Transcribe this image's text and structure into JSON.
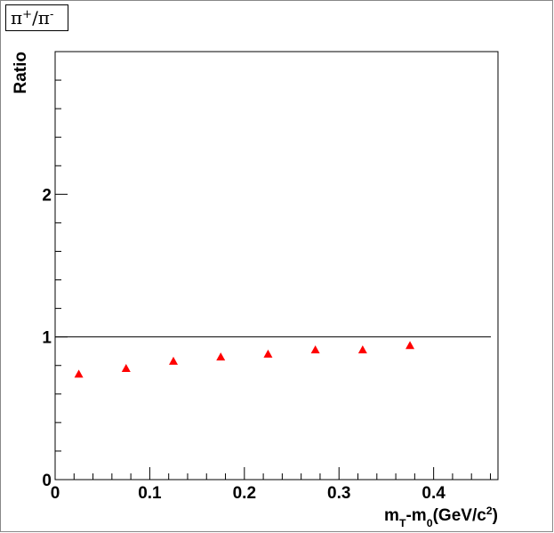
{
  "chart_data": {
    "type": "scatter",
    "title": {
      "parts": [
        "π",
        "+",
        "/π",
        "-"
      ],
      "shift": [
        "none",
        "sup",
        "none",
        "sup"
      ]
    },
    "ylabel": "Ratio",
    "xlabel": {
      "parts": [
        "m",
        "T",
        "-m",
        "0",
        "(GeV/c",
        "2",
        ")"
      ],
      "shift": [
        "none",
        "sub",
        "none",
        "sub",
        "none",
        "sup",
        "none"
      ]
    },
    "x": [
      0.025,
      0.075,
      0.125,
      0.175,
      0.225,
      0.275,
      0.325,
      0.375
    ],
    "values": [
      0.74,
      0.78,
      0.83,
      0.86,
      0.88,
      0.91,
      0.91,
      0.94
    ],
    "color": "#ff0000",
    "reference_line": 1,
    "xlim": [
      0,
      0.468
    ],
    "ylim": [
      0,
      3
    ],
    "xticks": [
      0,
      0.1,
      0.2,
      0.3,
      0.4
    ],
    "xminor": [
      0.02,
      0.04,
      0.06,
      0.08,
      0.12,
      0.14,
      0.16,
      0.18,
      0.22,
      0.24,
      0.26,
      0.28,
      0.32,
      0.34,
      0.36,
      0.38,
      0.42,
      0.44,
      0.46
    ],
    "yticks": [
      0,
      1,
      2,
      3
    ],
    "yticks_labeled": [
      0,
      1,
      2
    ],
    "yminor": [
      0.2,
      0.4,
      0.6,
      0.8,
      1.2,
      1.4,
      1.6,
      1.8,
      2.2,
      2.4,
      2.6,
      2.8
    ]
  }
}
